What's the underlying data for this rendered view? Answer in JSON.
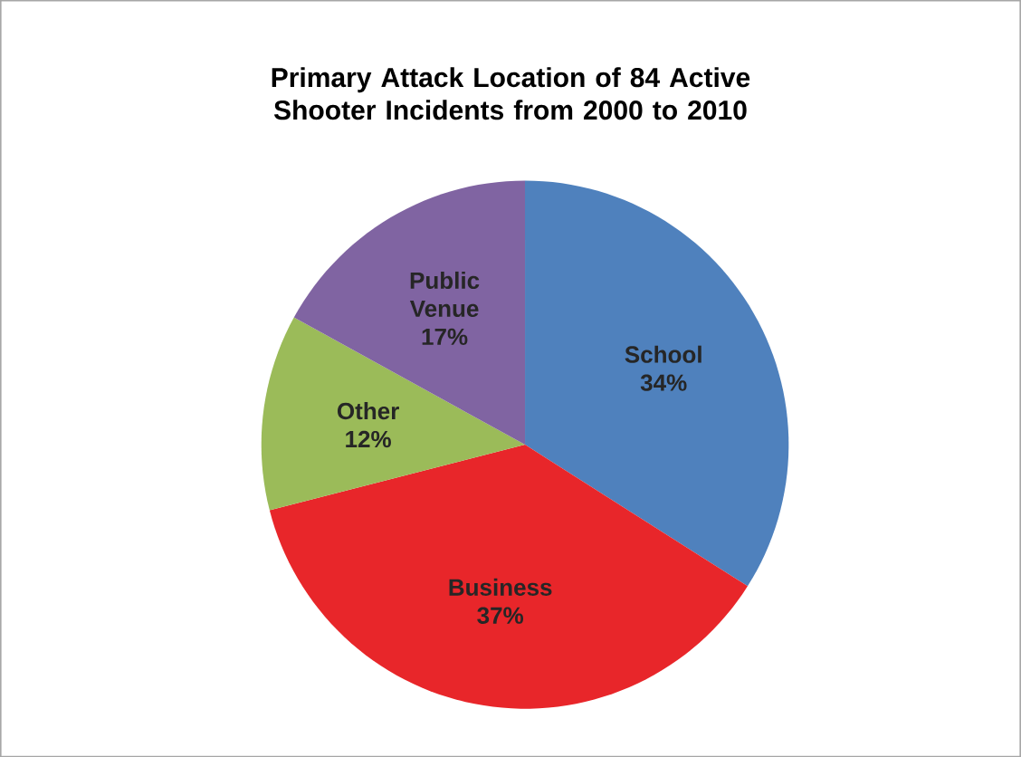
{
  "chart_data": {
    "type": "pie",
    "title": "Primary Attack Location of 84 Active Shooter Incidents from 2000 to 2010",
    "categories": [
      "School",
      "Business",
      "Other",
      "Public Venue"
    ],
    "values": [
      34,
      37,
      12,
      17
    ],
    "value_labels": [
      "34%",
      "37%",
      "12%",
      "17%"
    ],
    "colors": [
      "#4f81bd",
      "#e8262a",
      "#9bbb59",
      "#8064a2"
    ]
  }
}
